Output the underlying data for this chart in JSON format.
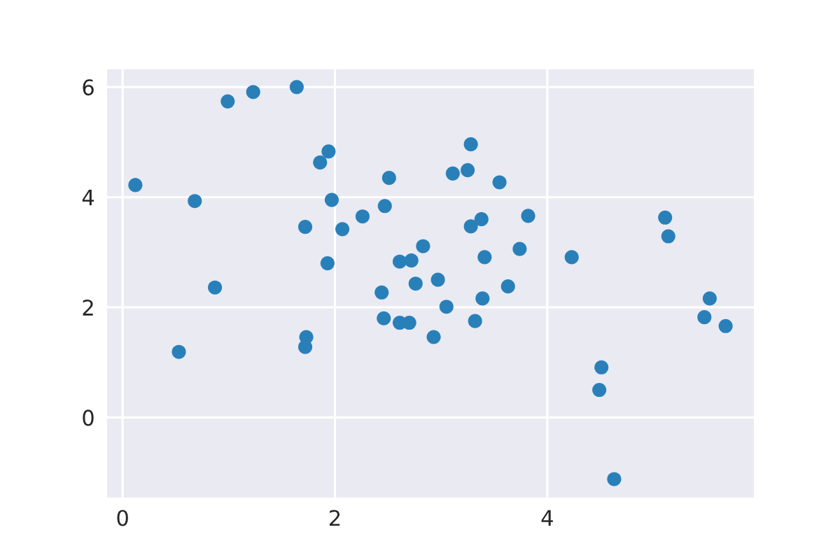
{
  "chart_data": {
    "type": "scatter",
    "x": [
      0.12,
      0.53,
      0.68,
      0.87,
      0.99,
      1.23,
      1.64,
      1.72,
      1.73,
      1.72,
      1.86,
      1.94,
      1.97,
      1.93,
      2.07,
      2.26,
      2.47,
      2.51,
      2.44,
      2.46,
      2.61,
      2.72,
      2.61,
      2.7,
      2.76,
      2.83,
      2.97,
      2.93,
      3.05,
      3.11,
      3.25,
      3.28,
      3.28,
      3.38,
      3.41,
      3.39,
      3.32,
      3.55,
      3.63,
      3.74,
      3.82,
      4.23,
      4.51,
      4.49,
      4.63,
      5.11,
      5.14,
      5.48,
      5.53,
      5.68
    ],
    "values": [
      4.22,
      1.19,
      3.93,
      2.36,
      5.74,
      5.91,
      6.0,
      3.46,
      1.46,
      1.28,
      4.63,
      4.83,
      3.95,
      2.8,
      3.42,
      3.65,
      3.84,
      4.35,
      2.27,
      1.8,
      2.83,
      2.85,
      1.72,
      1.72,
      2.43,
      3.11,
      2.5,
      1.46,
      2.01,
      4.43,
      4.49,
      4.96,
      3.47,
      3.6,
      2.91,
      2.16,
      1.75,
      4.27,
      2.38,
      3.06,
      3.66,
      2.91,
      0.91,
      0.5,
      -1.12,
      3.63,
      3.29,
      1.82,
      2.16,
      1.66
    ],
    "color": "#2980b9",
    "marker": "circle",
    "xlim": [
      -0.15,
      5.95
    ],
    "xticks": [
      0,
      2,
      4
    ],
    "ylim": [
      -1.46,
      6.33
    ],
    "yticks": [
      0,
      2,
      4,
      6
    ],
    "grid": true
  }
}
